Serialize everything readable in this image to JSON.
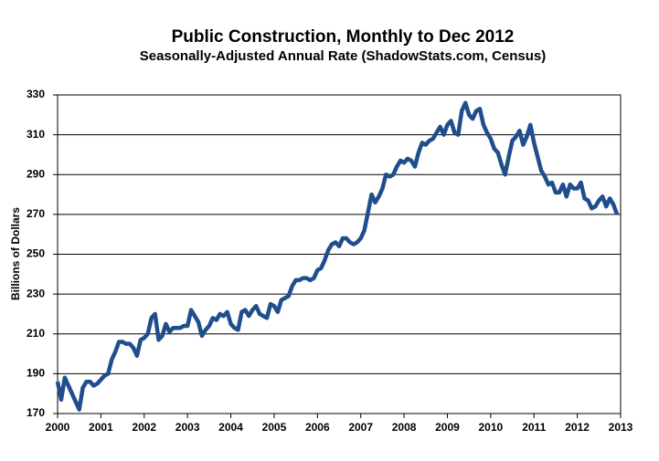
{
  "chart_data": {
    "type": "line",
    "title": "Public Construction, Monthly to Dec 2012",
    "subtitle": "Seasonally-Adjusted Annual Rate (ShadowStats.com, Census)",
    "y_label": "Billions of Dollars",
    "x": [
      2000,
      2000.083,
      2000.167,
      2000.25,
      2000.333,
      2000.417,
      2000.5,
      2000.583,
      2000.667,
      2000.75,
      2000.833,
      2000.917,
      2001,
      2001.083,
      2001.167,
      2001.25,
      2001.333,
      2001.417,
      2001.5,
      2001.583,
      2001.667,
      2001.75,
      2001.833,
      2001.917,
      2002,
      2002.083,
      2002.167,
      2002.25,
      2002.333,
      2002.417,
      2002.5,
      2002.583,
      2002.667,
      2002.75,
      2002.833,
      2002.917,
      2003,
      2003.083,
      2003.167,
      2003.25,
      2003.333,
      2003.417,
      2003.5,
      2003.583,
      2003.667,
      2003.75,
      2003.833,
      2003.917,
      2004,
      2004.083,
      2004.167,
      2004.25,
      2004.333,
      2004.417,
      2004.5,
      2004.583,
      2004.667,
      2004.75,
      2004.833,
      2004.917,
      2005,
      2005.083,
      2005.167,
      2005.25,
      2005.333,
      2005.417,
      2005.5,
      2005.583,
      2005.667,
      2005.75,
      2005.833,
      2005.917,
      2006,
      2006.083,
      2006.167,
      2006.25,
      2006.333,
      2006.417,
      2006.5,
      2006.583,
      2006.667,
      2006.75,
      2006.833,
      2006.917,
      2007,
      2007.083,
      2007.167,
      2007.25,
      2007.333,
      2007.417,
      2007.5,
      2007.583,
      2007.667,
      2007.75,
      2007.833,
      2007.917,
      2008,
      2008.083,
      2008.167,
      2008.25,
      2008.333,
      2008.417,
      2008.5,
      2008.583,
      2008.667,
      2008.75,
      2008.833,
      2008.917,
      2009,
      2009.083,
      2009.167,
      2009.25,
      2009.333,
      2009.417,
      2009.5,
      2009.583,
      2009.667,
      2009.75,
      2009.833,
      2009.917,
      2010,
      2010.083,
      2010.167,
      2010.25,
      2010.333,
      2010.417,
      2010.5,
      2010.583,
      2010.667,
      2010.75,
      2010.833,
      2010.917,
      2011,
      2011.083,
      2011.167,
      2011.25,
      2011.333,
      2011.417,
      2011.5,
      2011.583,
      2011.667,
      2011.75,
      2011.833,
      2011.917,
      2012,
      2012.083,
      2012.167,
      2012.25,
      2012.333,
      2012.417,
      2012.5,
      2012.583,
      2012.667,
      2012.75,
      2012.833,
      2012.917
    ],
    "series": [
      {
        "color": "#1f4e8c",
        "values": [
          186,
          177,
          188,
          184,
          180,
          176,
          172,
          183,
          186,
          186,
          184,
          185,
          187,
          189,
          190,
          197,
          201,
          206,
          206,
          205,
          205,
          203,
          199,
          207,
          208,
          210,
          218,
          220,
          207,
          209,
          215,
          211,
          213,
          213,
          213,
          214,
          214,
          222,
          219,
          216,
          209,
          212,
          214,
          218,
          217,
          220,
          219,
          221,
          215,
          213,
          212,
          221,
          222,
          219,
          222,
          224,
          220,
          219,
          218,
          225,
          224,
          221,
          227,
          228,
          229,
          234,
          237,
          237,
          238,
          238,
          237,
          238,
          242,
          243,
          247,
          252,
          255,
          256,
          254,
          258,
          258,
          256,
          255,
          256,
          258,
          262,
          271,
          280,
          276,
          279,
          283,
          290,
          289,
          290,
          294,
          297,
          296,
          298,
          297,
          294,
          301,
          306,
          305,
          307,
          308,
          311,
          314,
          310,
          315,
          317,
          311,
          310,
          322,
          326,
          320,
          318,
          322,
          323,
          315,
          311,
          308,
          303,
          301,
          295,
          290,
          299,
          307,
          309,
          312,
          305,
          309,
          315,
          306,
          299,
          292,
          289,
          285,
          286,
          281,
          281,
          285,
          279,
          285,
          283,
          283,
          286,
          278,
          277,
          273,
          274,
          277,
          279,
          274,
          278,
          275,
          270
        ]
      }
    ],
    "xlim": [
      2000,
      2013
    ],
    "xticks": [
      2000,
      2001,
      2002,
      2003,
      2004,
      2005,
      2006,
      2007,
      2008,
      2009,
      2010,
      2011,
      2012,
      2013
    ],
    "ylim": [
      170,
      330
    ],
    "yticks": [
      170,
      190,
      210,
      230,
      250,
      270,
      290,
      310,
      330
    ],
    "grid": true
  }
}
